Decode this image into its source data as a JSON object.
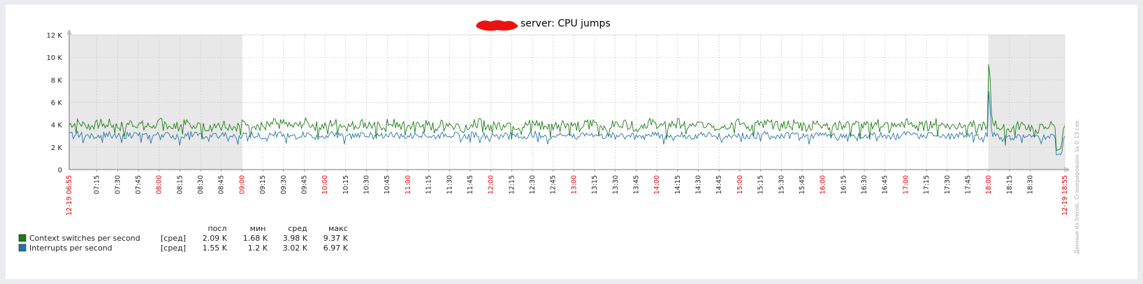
{
  "title_suffix": "server: CPU jumps",
  "side_note": "Данные из trends. Сгенерировано за 0.13 сек.",
  "colors": {
    "series1": "#1a7c11",
    "series2": "#2774a4",
    "shade": "#e8e8e8",
    "grid": "#c8c8c8",
    "highlight_tick": "#e00000",
    "redaction": "#ee1111"
  },
  "chart_data": {
    "type": "line",
    "title": "server: CPU jumps",
    "x_start_label": "12-19 06:55",
    "x_end_label": "12-19 18:55",
    "x_range_minutes": [
      415,
      1135
    ],
    "ylim": [
      0,
      12000
    ],
    "y_ticks": [
      {
        "value": 0,
        "label": "0"
      },
      {
        "value": 2000,
        "label": "2 K"
      },
      {
        "value": 4000,
        "label": "4 K"
      },
      {
        "value": 6000,
        "label": "6 K"
      },
      {
        "value": 8000,
        "label": "8 K"
      },
      {
        "value": 10000,
        "label": "10 K"
      },
      {
        "value": 12000,
        "label": "12 K"
      }
    ],
    "x_ticks": [
      "07:15",
      "07:30",
      "07:45",
      "08:00",
      "08:15",
      "08:30",
      "08:45",
      "09:00",
      "09:15",
      "09:30",
      "09:45",
      "10:00",
      "10:15",
      "10:30",
      "10:45",
      "11:00",
      "11:15",
      "11:30",
      "11:45",
      "12:00",
      "12:15",
      "12:30",
      "12:45",
      "13:00",
      "13:15",
      "13:30",
      "13:45",
      "14:00",
      "14:15",
      "14:30",
      "14:45",
      "15:00",
      "15:15",
      "15:30",
      "15:45",
      "16:00",
      "16:15",
      "16:30",
      "16:45",
      "17:00",
      "17:15",
      "17:30",
      "17:45",
      "18:00",
      "18:15",
      "18:30"
    ],
    "shaded_ranges": [
      [
        "06:55",
        "09:00"
      ],
      [
        "18:00",
        "18:55"
      ]
    ],
    "grid": true,
    "series": [
      {
        "name": "Context switches per second",
        "func": "[сред]",
        "last": "2.09 K",
        "min": "1.68 K",
        "avg": "3.98 K",
        "max": "9.37 K",
        "baseline": 4000,
        "amplitude": 450,
        "events": [
          {
            "time": "18:00",
            "value": 9370
          },
          {
            "time": "18:01",
            "value": 8200
          },
          {
            "time": "18:02",
            "value": 5000
          },
          {
            "time": "18:49",
            "value": 1700
          },
          {
            "time": "18:53",
            "value": 2500
          }
        ]
      },
      {
        "name": "Interrupts per second",
        "func": "[сред]",
        "last": "1.55 K",
        "min": "1.2 K",
        "avg": "3.02 K",
        "max": "6.97 K",
        "baseline": 3050,
        "amplitude": 280,
        "events": [
          {
            "time": "18:00",
            "value": 6970
          },
          {
            "time": "18:01",
            "value": 5500
          },
          {
            "time": "18:02",
            "value": 3600
          },
          {
            "time": "18:49",
            "value": 1300
          },
          {
            "time": "18:53",
            "value": 1550
          }
        ]
      }
    ]
  },
  "legend": {
    "headers": {
      "last": "посл",
      "min": "мин",
      "avg": "сред",
      "max": "макс"
    }
  }
}
